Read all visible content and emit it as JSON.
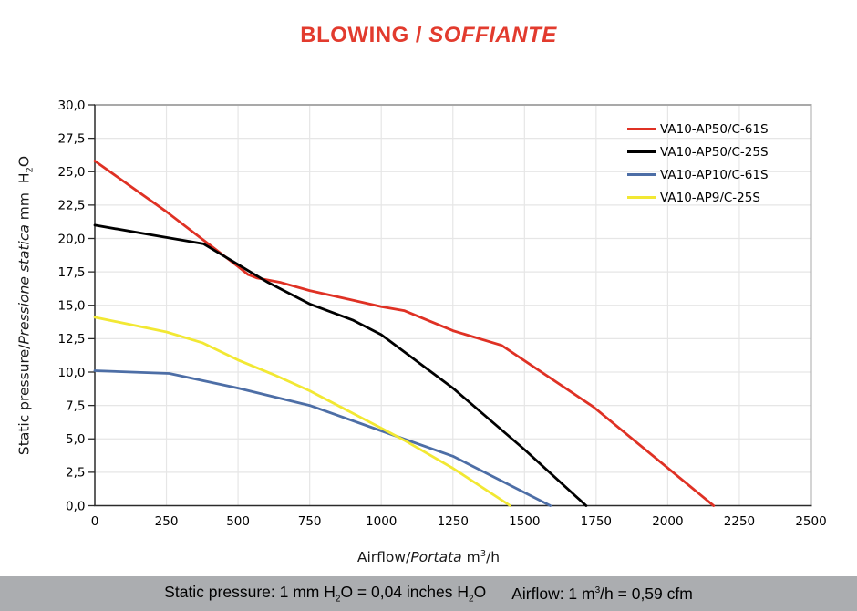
{
  "title": {
    "upright": "BLOWING / ",
    "italic": "SOFFIANTE"
  },
  "ylabel_parts": {
    "p1": "Static pressure/",
    "p2": "Pressione statica",
    "p3": " mm  H",
    "sub": "2",
    "p4": "O"
  },
  "xlabel_parts": {
    "p1": "Airflow/",
    "p2": "Portata",
    "p3": " m",
    "sup": "3",
    "p4": "/h"
  },
  "footer": {
    "static_p1": "Static pressure: 1 mm H",
    "static_sub1": "2",
    "static_p2": "O = 0,04 inches H",
    "static_sub2": "2",
    "static_p3": "O",
    "airflow_p1": "Airflow: 1 m",
    "airflow_sup": "3",
    "airflow_p2": "/h = 0,59 cfm"
  },
  "colors": {
    "title_red": "#e23b2e",
    "axis": "#2b2b2b",
    "grid": "#e6e6e6",
    "border": "#a9a9a9",
    "footer_bar": "#abadb0"
  },
  "chart_data": {
    "type": "line",
    "title": "BLOWING / SOFFIANTE",
    "xlabel": "Airflow/Portata m³/h",
    "ylabel": "Static pressure/Pressione statica mm H₂O",
    "xlim": [
      0,
      2500
    ],
    "ylim": [
      0,
      30
    ],
    "xticks": [
      "0",
      "250",
      "500",
      "750",
      "1000",
      "1250",
      "1500",
      "1750",
      "2000",
      "2250",
      "2500"
    ],
    "yticks": [
      "0,0",
      "2,5",
      "5,0",
      "7,5",
      "10,0",
      "12,5",
      "15,0",
      "17,5",
      "20,0",
      "22,5",
      "25,0",
      "27,5",
      "30,0"
    ],
    "grid": true,
    "legend_position": "top-right",
    "units_note": "Static pressure: 1 mm H2O = 0,04 inches H2O / Airflow: 1 m3/h = 0,59 cfm",
    "series": [
      {
        "name": "VA10-AP50/C-61S",
        "color": "#df3124",
        "points": [
          [
            0,
            25.8
          ],
          [
            250,
            22.0
          ],
          [
            500,
            17.9
          ],
          [
            535,
            17.3
          ],
          [
            565,
            17.05
          ],
          [
            650,
            16.7
          ],
          [
            750,
            16.1
          ],
          [
            1000,
            14.9
          ],
          [
            1080,
            14.6
          ],
          [
            1250,
            13.1
          ],
          [
            1420,
            12.0
          ],
          [
            1740,
            7.4
          ],
          [
            2160,
            0
          ]
        ]
      },
      {
        "name": "VA10-AP50/C-25S",
        "color": "#000000",
        "points": [
          [
            0,
            21.0
          ],
          [
            380,
            19.6
          ],
          [
            535,
            17.6
          ],
          [
            605,
            16.7
          ],
          [
            750,
            15.1
          ],
          [
            900,
            13.9
          ],
          [
            1000,
            12.8
          ],
          [
            1250,
            8.8
          ],
          [
            1500,
            4.2
          ],
          [
            1715,
            0
          ]
        ]
      },
      {
        "name": "VA10-AP10/C-61S",
        "color": "#4d6ea6",
        "points": [
          [
            0,
            10.1
          ],
          [
            260,
            9.9
          ],
          [
            500,
            8.8
          ],
          [
            750,
            7.5
          ],
          [
            1000,
            5.6
          ],
          [
            1250,
            3.7
          ],
          [
            1590,
            0
          ]
        ]
      },
      {
        "name": "VA10-AP9/C-25S",
        "color": "#f2e833",
        "points": [
          [
            0,
            14.1
          ],
          [
            250,
            13.0
          ],
          [
            375,
            12.2
          ],
          [
            500,
            10.9
          ],
          [
            625,
            9.8
          ],
          [
            750,
            8.6
          ],
          [
            1000,
            5.8
          ],
          [
            1080,
            4.9
          ],
          [
            1250,
            2.8
          ],
          [
            1450,
            0
          ]
        ]
      }
    ]
  }
}
